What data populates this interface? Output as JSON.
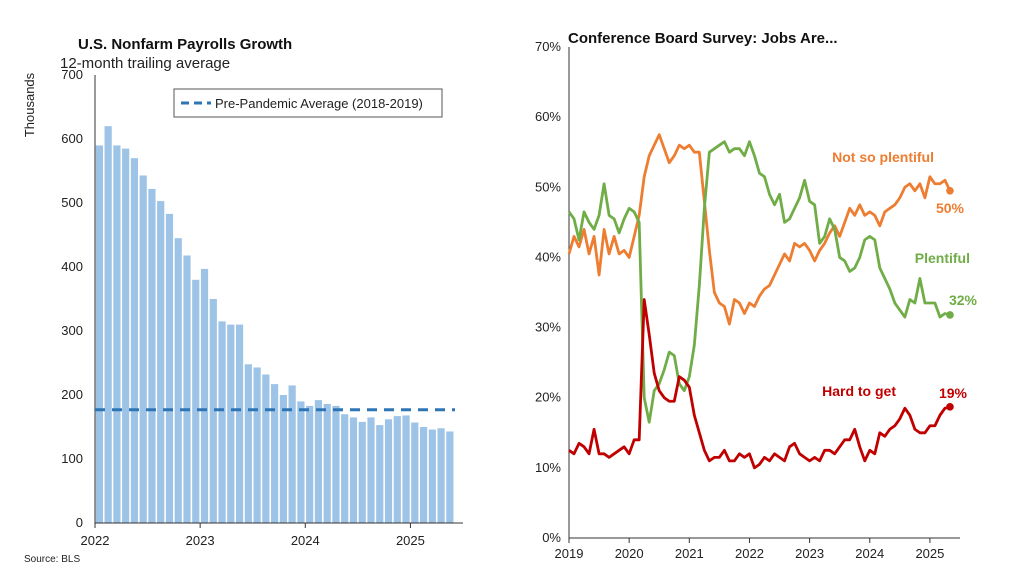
{
  "footer": {
    "source": "Source: BLS"
  },
  "chart_data": [
    {
      "type": "bar",
      "title": "U.S. Nonfarm Payrolls Growth",
      "subtitle": "12-month trailing average",
      "ylabel": "Thousands",
      "xlabel": "",
      "ylim": [
        0,
        700
      ],
      "yticks": [
        0,
        100,
        200,
        300,
        400,
        500,
        600,
        700
      ],
      "xlim": [
        2022.0,
        2025.5
      ],
      "xticks": [
        2022,
        2023,
        2024,
        2025
      ],
      "bar_color": "#9dc3e6",
      "start": "2022-01",
      "values": [
        590,
        620,
        590,
        585,
        570,
        543,
        522,
        503,
        483,
        445,
        418,
        380,
        397,
        350,
        315,
        310,
        310,
        248,
        243,
        232,
        217,
        200,
        215,
        190,
        183,
        192,
        186,
        183,
        170,
        165,
        158,
        165,
        153,
        162,
        167,
        168,
        157,
        150,
        146,
        148,
        143
      ],
      "reference_line": {
        "label": "Pre-Pandemic Average (2018-2019)",
        "value": 177,
        "color": "#2e75b6"
      },
      "legend_position": "top-right",
      "grid": false
    },
    {
      "type": "line",
      "title": "Conference Board Survey: Jobs Are...",
      "xlabel": "",
      "ylabel": "",
      "ylim": [
        0,
        70
      ],
      "yticks": [
        "0%",
        "10%",
        "20%",
        "30%",
        "40%",
        "50%",
        "60%",
        "70%"
      ],
      "xlim": [
        2019.0,
        2025.5
      ],
      "xticks": [
        2019,
        2020,
        2021,
        2022,
        2023,
        2024,
        2025
      ],
      "start": "2019-01",
      "grid": false,
      "series": [
        {
          "name": "Not so plentiful",
          "color": "#ed7d31",
          "end_label": "50%",
          "values": [
            40.5,
            43,
            41.5,
            44,
            40.5,
            43,
            37.5,
            44,
            40.5,
            43,
            40.5,
            41,
            40,
            43,
            46,
            51.5,
            54.5,
            56,
            57.5,
            55.5,
            53.5,
            54.5,
            56,
            55.5,
            56,
            55,
            55,
            48,
            41,
            35,
            33.5,
            33,
            30.5,
            34,
            33.5,
            32,
            33.5,
            33,
            34.5,
            35.5,
            36,
            37.5,
            39,
            40.5,
            39.5,
            42,
            41.5,
            42,
            41,
            39.5,
            41,
            42,
            43.5,
            44.5,
            43,
            45,
            47,
            46,
            47.5,
            46,
            46.5,
            46,
            44.5,
            46.5,
            47,
            47.5,
            48.5,
            50,
            50.5,
            49.5,
            50.5,
            48.5,
            51.5,
            50.5,
            50.5,
            51,
            49.5
          ]
        },
        {
          "name": "Plentiful",
          "color": "#70ad47",
          "end_label": "32%",
          "values": [
            46.5,
            45.5,
            42.5,
            46.5,
            45,
            44,
            46,
            50.5,
            46,
            45.5,
            43.5,
            45.5,
            47,
            46.5,
            45,
            20,
            16.5,
            21,
            22,
            24,
            26.5,
            26,
            22,
            21,
            23,
            27.5,
            36,
            47,
            55,
            55.5,
            56,
            56.5,
            55,
            55.5,
            55.5,
            54.5,
            56.5,
            54.5,
            52,
            51.5,
            49,
            47.5,
            49,
            45,
            45.5,
            47,
            48.5,
            51,
            48,
            47.5,
            42,
            43,
            45.5,
            44,
            40,
            39.5,
            38,
            38.5,
            40,
            42.5,
            43,
            42.5,
            38.5,
            37,
            35.5,
            33.5,
            32.5,
            31.5,
            34,
            33.5,
            37,
            33.5,
            33.5,
            33.5,
            31.5,
            32,
            31.8
          ]
        },
        {
          "name": "Hard to get",
          "color": "#c00000",
          "end_label": "19%",
          "values": [
            12.5,
            12,
            13.5,
            13,
            12,
            15.5,
            12,
            12,
            11.5,
            12,
            12.5,
            13,
            12,
            14,
            14,
            34,
            29,
            23.5,
            21,
            20,
            19.5,
            19.5,
            23,
            22.5,
            21.5,
            17.5,
            15,
            12.5,
            11,
            11.5,
            11.5,
            12.5,
            11,
            11,
            12,
            11.5,
            12,
            10,
            10.5,
            11.5,
            11,
            12,
            11.5,
            11,
            13,
            13.5,
            12,
            11.5,
            11,
            11.5,
            11,
            12.5,
            12.5,
            12,
            13,
            14,
            14,
            15.5,
            13,
            11,
            12.5,
            12,
            15,
            14.5,
            15.5,
            16,
            17,
            18.5,
            17.5,
            15.5,
            15,
            15,
            16,
            16,
            17.5,
            18.5,
            18.7
          ]
        }
      ]
    }
  ]
}
